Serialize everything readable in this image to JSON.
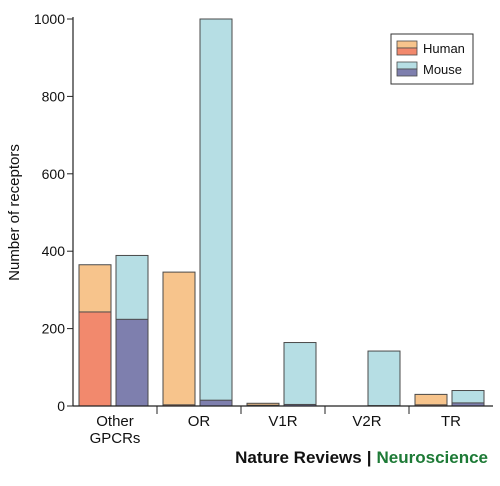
{
  "chart_data": {
    "type": "bar",
    "ylabel": "Number of receptors",
    "ylim": [
      0,
      1000
    ],
    "yticks": [
      0,
      200,
      400,
      600,
      800,
      1000
    ],
    "categories": [
      [
        "Other",
        "GPCRs"
      ],
      [
        "OR"
      ],
      [
        "V1R"
      ],
      [
        "V2R"
      ],
      [
        "TR"
      ]
    ],
    "legend": {
      "position": "top-right",
      "entries": [
        "Human",
        "Mouse"
      ]
    },
    "series": [
      {
        "name": "Human",
        "total": [
          365,
          346,
          7,
          0,
          30
        ],
        "functional": [
          243,
          3,
          2,
          0,
          3
        ],
        "color_total": "#f7c48c",
        "color_functional": "#f2896d"
      },
      {
        "name": "Mouse",
        "total": [
          389,
          1000,
          164,
          142,
          40
        ],
        "functional": [
          224,
          15,
          4,
          1,
          8
        ],
        "color_total": "#b6dee4",
        "color_functional": "#7e7fae"
      }
    ]
  },
  "credit": {
    "journal": "Nature Reviews",
    "separator": "|",
    "section": "Neuroscience"
  }
}
